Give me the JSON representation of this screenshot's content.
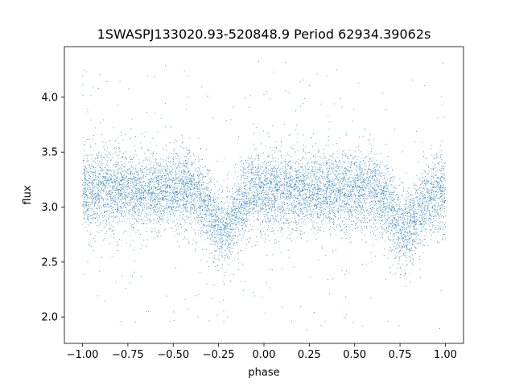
{
  "chart_data": {
    "type": "scatter",
    "title": "1SWASPJ133020.93-520848.9 Period 62934.39062s",
    "xlabel": "phase",
    "ylabel": "flux",
    "xlim": [
      -1.1,
      1.1
    ],
    "ylim": [
      1.76,
      4.46
    ],
    "xticks": [
      -1.0,
      -0.75,
      -0.5,
      -0.25,
      0.0,
      0.25,
      0.5,
      0.75,
      1.0
    ],
    "xtick_labels": [
      "−1.00",
      "−0.75",
      "−0.50",
      "−0.25",
      "0.00",
      "0.25",
      "0.50",
      "0.75",
      "1.00"
    ],
    "yticks": [
      2.0,
      2.5,
      3.0,
      3.5,
      4.0
    ],
    "ytick_labels": [
      "2.0",
      "2.5",
      "3.0",
      "3.5",
      "4.0"
    ],
    "grid": false,
    "series": [
      {
        "color": "#1f77b4",
        "baseline_flux": 3.15,
        "scatter_sigma": 0.18,
        "dips": [
          {
            "phase": -0.22,
            "depth": 0.35,
            "width": 0.07
          },
          {
            "phase": 0.78,
            "depth": 0.35,
            "width": 0.07
          }
        ],
        "phase_range": [
          -1.0,
          1.0
        ]
      }
    ]
  }
}
